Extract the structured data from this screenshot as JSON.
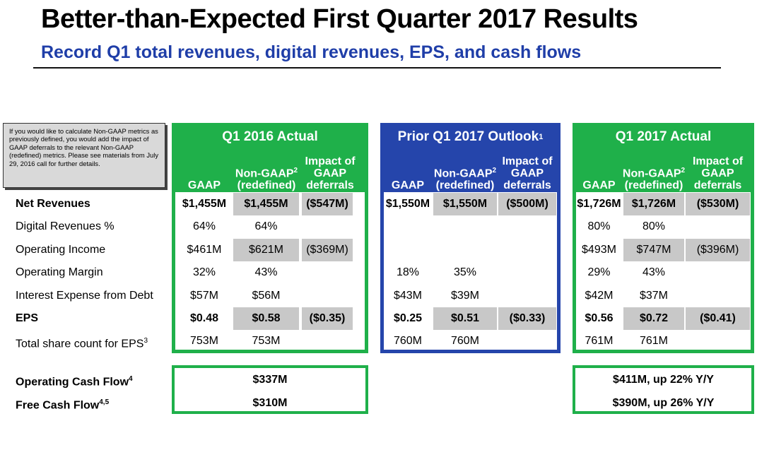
{
  "title": "Better-than-Expected First Quarter 2017 Results",
  "subtitle": "Record Q1 total revenues, digital revenues, EPS, and cash flows",
  "note": "If you would like to calculate Non-GAAP metrics as previously defined, you would add the impact of GAAP deferrals to the relevant Non-GAAP (redefined) metrics. Please see materials from July 29, 2016 call for further details.",
  "columns": {
    "gaap": "GAAP",
    "nongaap": "Non-GAAP",
    "nongaap_sup": "2",
    "redefined": "(redefined)",
    "impact_1": "Impact of",
    "impact_2": "GAAP",
    "impact_3": "deferrals"
  },
  "panels": {
    "q1_2016": {
      "title": "Q1 2016 Actual",
      "sup": ""
    },
    "outlook": {
      "title": "Prior Q1 2017 Outlook",
      "sup": "1"
    },
    "q1_2017": {
      "title": "Q1 2017 Actual",
      "sup": ""
    }
  },
  "rows": [
    {
      "label": "Net Revenues",
      "sup": "",
      "bold": true
    },
    {
      "label": "Digital Revenues %",
      "sup": ""
    },
    {
      "label": "Operating Income",
      "sup": ""
    },
    {
      "label": "Operating Margin",
      "sup": ""
    },
    {
      "label": "Interest Expense from Debt",
      "sup": ""
    },
    {
      "label": "EPS",
      "sup": "",
      "bold": true
    },
    {
      "label": "Total share count for EPS",
      "sup": "3"
    }
  ],
  "values": {
    "q1_2016": [
      [
        "$1,455M",
        "$1,455M",
        "($547M)"
      ],
      [
        "64%",
        "64%",
        ""
      ],
      [
        "$461M",
        "$621M",
        "($369M)"
      ],
      [
        "32%",
        "43%",
        ""
      ],
      [
        "$57M",
        "$56M",
        ""
      ],
      [
        "$0.48",
        "$0.58",
        "($0.35)"
      ],
      [
        "753M",
        "753M",
        ""
      ]
    ],
    "outlook": [
      [
        "$1,550M",
        "$1,550M",
        "($500M)"
      ],
      [
        "",
        "",
        ""
      ],
      [
        "",
        "",
        ""
      ],
      [
        "18%",
        "35%",
        ""
      ],
      [
        "$43M",
        "$39M",
        ""
      ],
      [
        "$0.25",
        "$0.51",
        "($0.33)"
      ],
      [
        "760M",
        "760M",
        ""
      ]
    ],
    "q1_2017": [
      [
        "$1,726M",
        "$1,726M",
        "($530M)"
      ],
      [
        "80%",
        "80%",
        ""
      ],
      [
        "$493M",
        "$747M",
        "($396M)"
      ],
      [
        "29%",
        "43%",
        ""
      ],
      [
        "$42M",
        "$37M",
        ""
      ],
      [
        "$0.56",
        "$0.72",
        "($0.41)"
      ],
      [
        "761M",
        "761M",
        ""
      ]
    ]
  },
  "cash_flow": {
    "ocf_label": "Operating Cash Flow",
    "ocf_sup": "4",
    "fcf_label": "Free Cash Flow",
    "fcf_sup": "4,5",
    "q1_2016_ocf": "$337M",
    "q1_2016_fcf": "$310M",
    "q1_2017_ocf": "$411M, up 22% Y/Y",
    "q1_2017_fcf": "$390M, up 26% Y/Y"
  },
  "colors": {
    "green": "#1fb04a",
    "blue": "#2545ab",
    "grey": "#c8c8c8",
    "subtitle": "#1f3ea8"
  }
}
